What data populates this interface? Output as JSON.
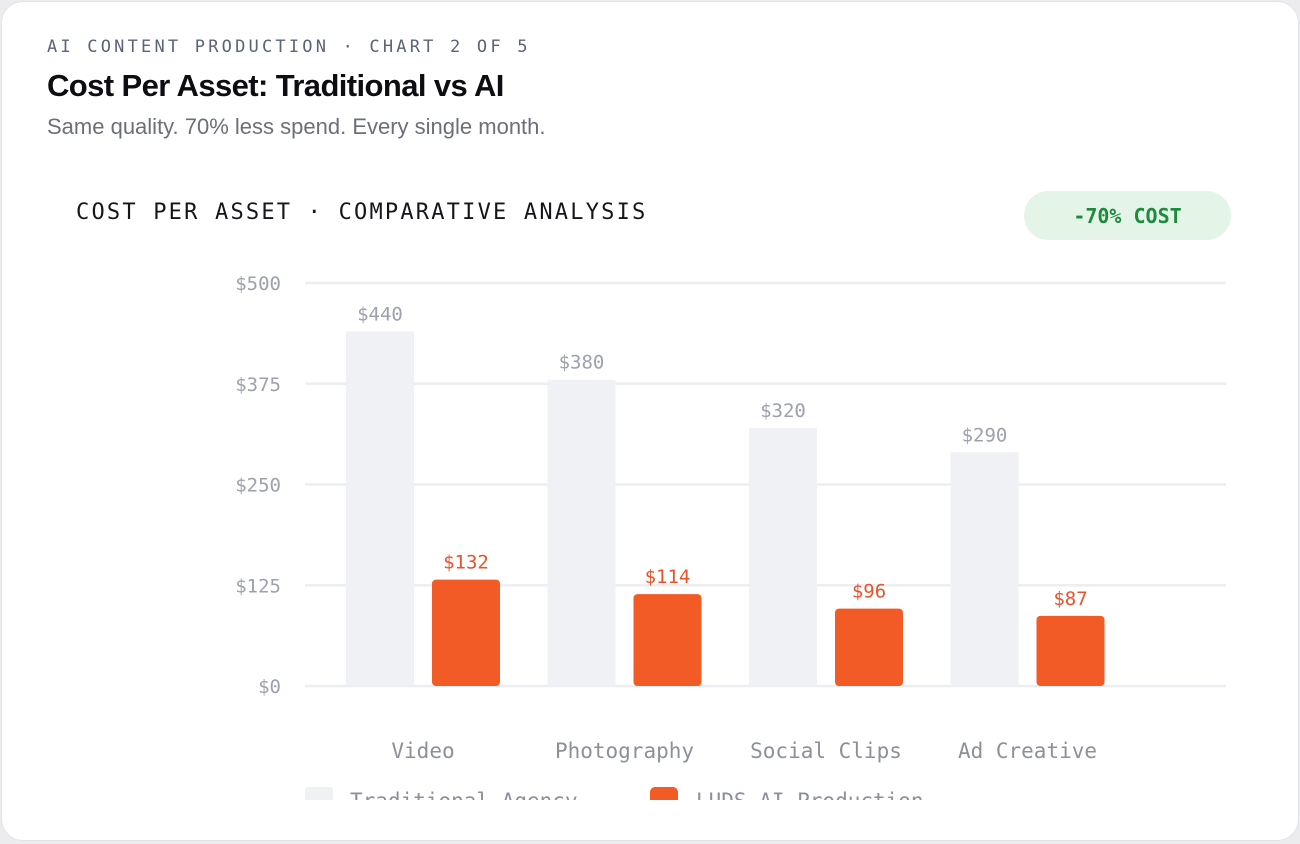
{
  "header": {
    "eyebrow": "AI CONTENT PRODUCTION · CHART 2 OF 5",
    "title": "Cost Per Asset: Traditional vs AI",
    "subtitle": "Same quality. 70% less spend. Every single month."
  },
  "chart_header": {
    "heading": "COST PER ASSET · COMPARATIVE ANALYSIS",
    "badge": "-70% COST"
  },
  "colors": {
    "traditional": "#f0f1f5",
    "ai": "#f25a26",
    "grid": "#eceef2",
    "badge_bg": "#e4f5e8",
    "badge_text": "#1d8a3c"
  },
  "chart_data": {
    "type": "bar",
    "categories": [
      "Video",
      "Photography",
      "Social Clips",
      "Ad Creative"
    ],
    "series": [
      {
        "name": "Traditional Agency",
        "values": [
          440,
          380,
          320,
          290
        ],
        "labels": [
          "$440",
          "$380",
          "$320",
          "$290"
        ]
      },
      {
        "name": "LUDS AI Production",
        "values": [
          132,
          114,
          96,
          87
        ],
        "labels": [
          "$132",
          "$114",
          "$96",
          "$87"
        ]
      }
    ],
    "ylim": [
      0,
      500
    ],
    "yticks": [
      0,
      125,
      250,
      375,
      500
    ],
    "ytick_labels": [
      "$0",
      "$125",
      "$250",
      "$375",
      "$500"
    ],
    "grid": true,
    "legend_position": "bottom-left"
  }
}
